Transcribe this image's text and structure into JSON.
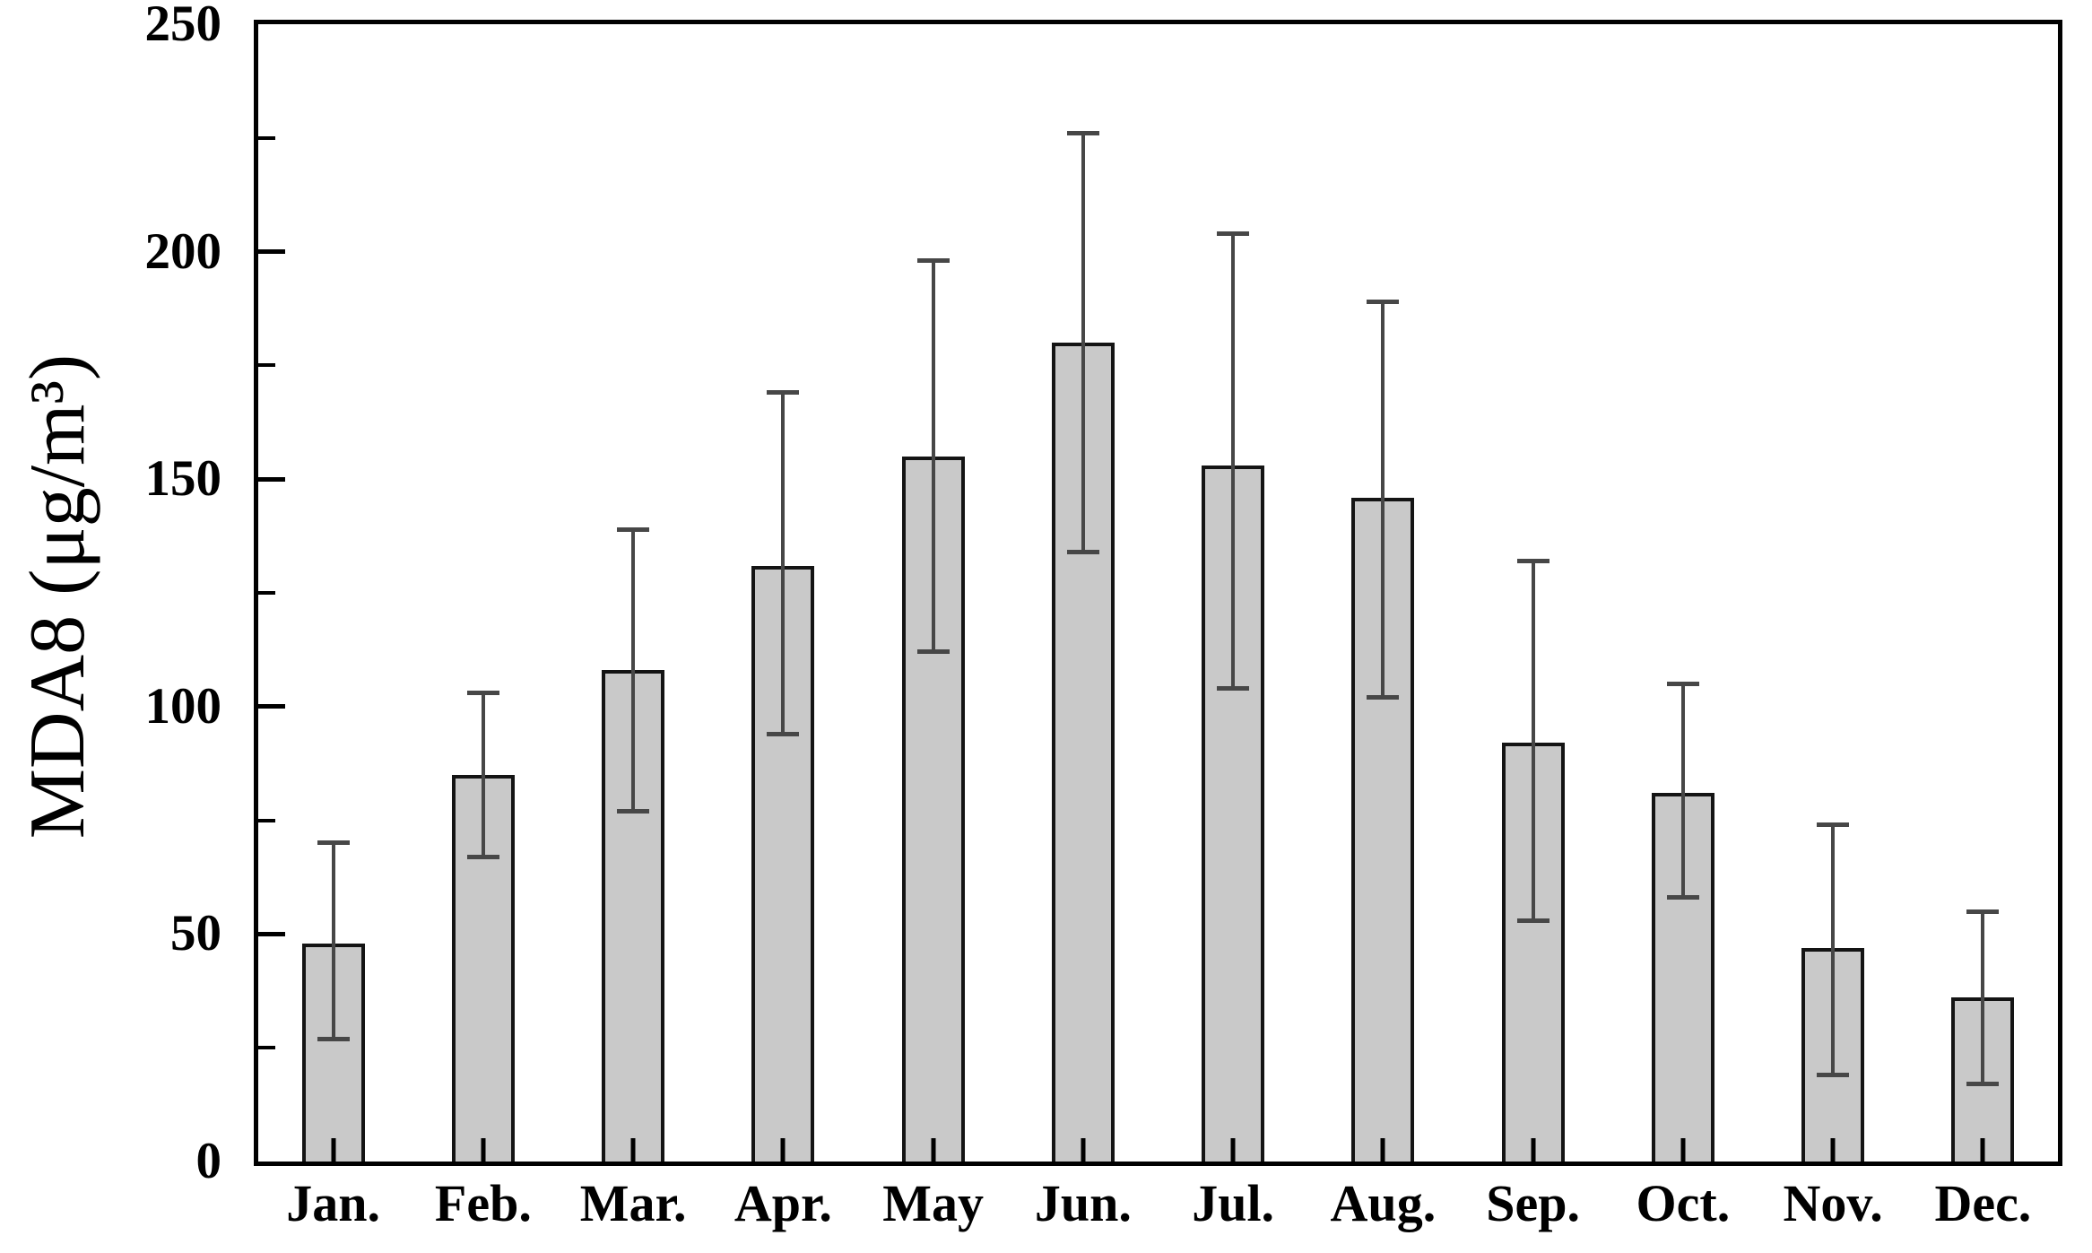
{
  "figure": {
    "background_color": "#ffffff",
    "bar_fill_color": "#c9c9c9",
    "bar_edge_color": "#141414",
    "errorbar_color": "#474747",
    "axis_color": "#000000"
  },
  "chart_data": {
    "type": "bar",
    "title": "",
    "xlabel": "",
    "ylabel": "MDA8 (μg/m³)",
    "ylim": [
      0,
      250
    ],
    "grid": false,
    "legend": false,
    "ytick_major_step": 50,
    "ytick_minor_step": 25,
    "yticks": [
      0,
      50,
      100,
      150,
      200,
      250
    ],
    "yticks_minor": [
      25,
      75,
      125,
      175,
      225
    ],
    "categories": [
      "Jan.",
      "Feb.",
      "Mar.",
      "Apr.",
      "May",
      "Jun.",
      "Jul.",
      "Aug.",
      "Sep.",
      "Oct.",
      "Nov.",
      "Dec."
    ],
    "values": [
      48,
      85,
      108,
      131,
      155,
      180,
      153,
      146,
      92,
      81,
      47,
      36
    ],
    "error_low": [
      27,
      67,
      77,
      94,
      112,
      134,
      104,
      102,
      53,
      58,
      19,
      17
    ],
    "error_high": [
      70,
      103,
      139,
      169,
      198,
      226,
      204,
      189,
      132,
      105,
      74,
      55
    ],
    "units": "μg/m³"
  }
}
